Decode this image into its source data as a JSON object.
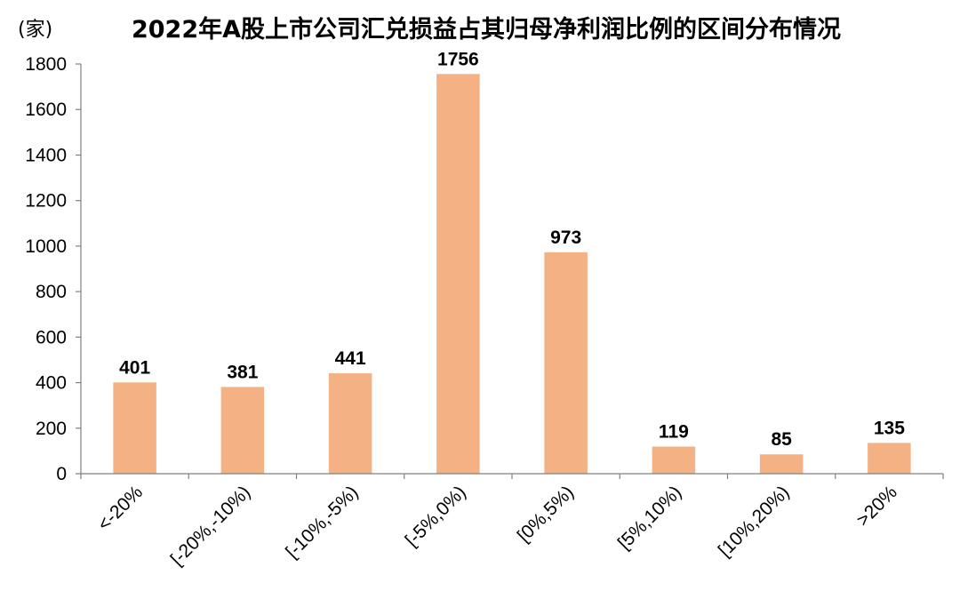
{
  "chart_data": {
    "type": "bar",
    "title": "2022年A股上市公司汇兑损益占其归母净利润比例的区间分布情况",
    "y_unit": "(家)",
    "xlabel": "",
    "ylabel": "",
    "categories": [
      "<-20%",
      "[-20%,-10%)",
      "[-10%,-5%)",
      "[-5%,0%)",
      "[0%,5%)",
      "[5%,10%)",
      "[10%,20%)",
      ">20%"
    ],
    "values": [
      401,
      381,
      441,
      1756,
      973,
      119,
      85,
      135
    ],
    "ylim": [
      0,
      1800
    ],
    "yticks": [
      "0",
      "200",
      "400",
      "600",
      "800",
      "1000",
      "1200",
      "1400",
      "1600",
      "1800"
    ],
    "grid": false,
    "legend": "none",
    "bar_color": "#F4B183",
    "axis_color": "#808080"
  }
}
